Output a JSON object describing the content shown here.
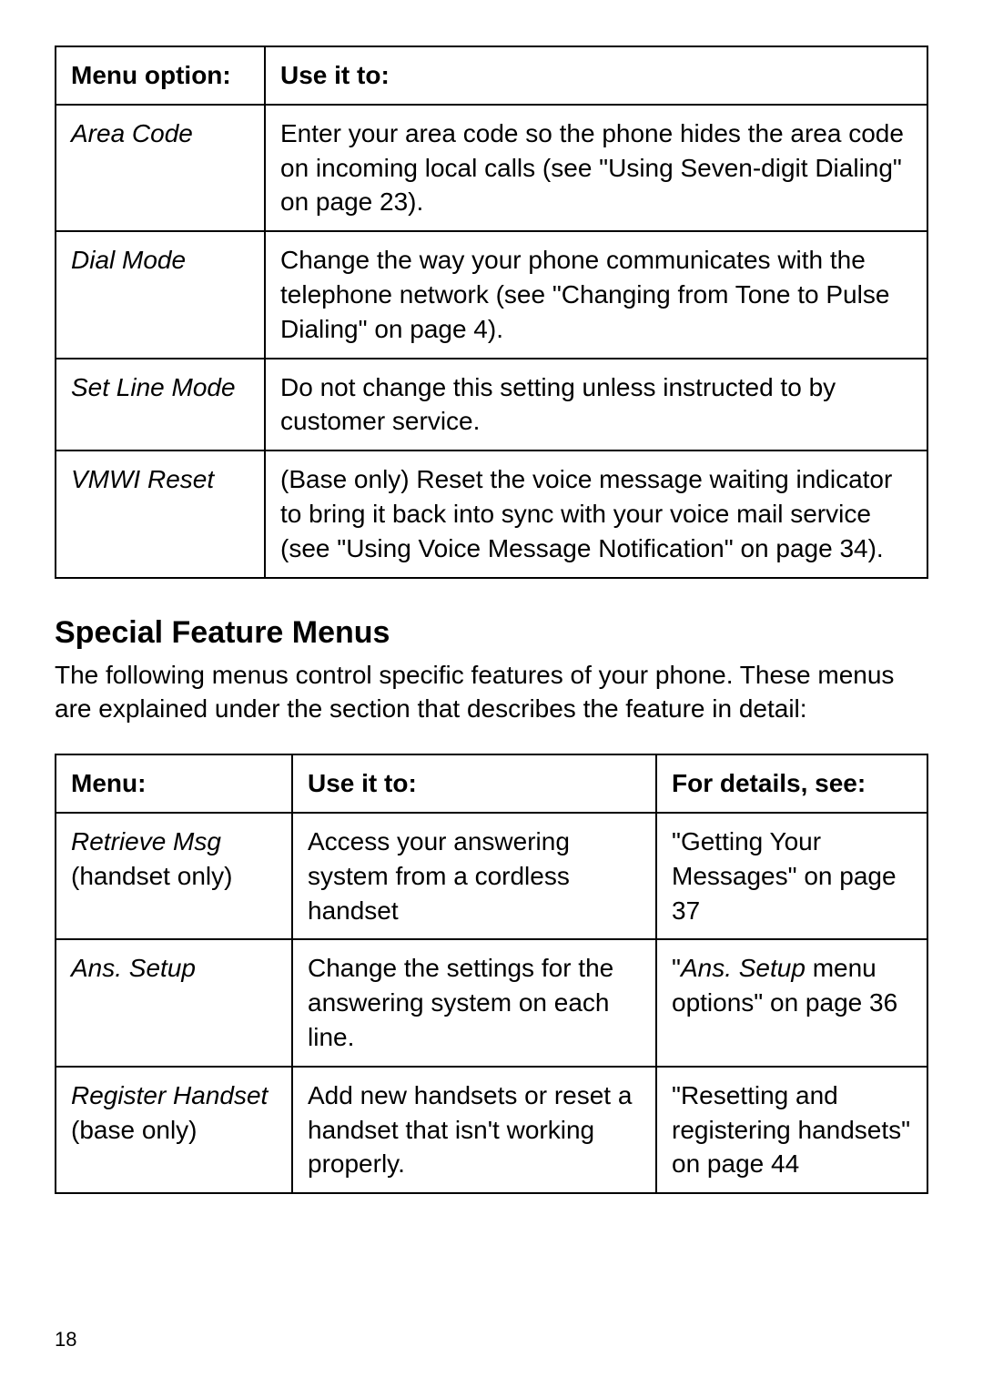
{
  "table1": {
    "headers": [
      "Menu option:",
      "Use it to:"
    ],
    "rows": [
      {
        "option": "Area Code",
        "desc": "Enter your area code so the phone hides the area code on incoming local calls (see \"Using Seven-digit Dialing\" on page 23)."
      },
      {
        "option": "Dial Mode",
        "desc": "Change the way your phone communicates with the telephone network (see \"Changing from Tone to Pulse Dialing\" on page 4)."
      },
      {
        "option": "Set Line Mode",
        "desc": "Do not change this setting unless instructed to by customer service."
      },
      {
        "option": "VMWI Reset",
        "desc": "(Base only) Reset the voice message waiting indicator to bring it back into sync with your voice mail service (see \"Using Voice Message Notification\" on page 34)."
      }
    ]
  },
  "section": {
    "title": "Special Feature Menus",
    "intro": "The following menus control specific features of your phone. These menus are explained under the section that describes the feature in detail:"
  },
  "table2": {
    "headers": [
      "Menu:",
      "Use it to:",
      "For details, see:"
    ],
    "rows": [
      {
        "menu_italic": "Retrieve Msg",
        "menu_plain": " (handset only)",
        "use": "Access your answering system from a cordless handset",
        "details_pre": "\"Getting Your Messages\" on page 37",
        "details_italic": "",
        "details_post": ""
      },
      {
        "menu_italic": "Ans. Setup",
        "menu_plain": "",
        "use": "Change the settings for the answering system on each line.",
        "details_pre": "\"",
        "details_italic": "Ans. Setup",
        "details_post": " menu options\" on page 36"
      },
      {
        "menu_italic": "Register Handset",
        "menu_plain": " (base only)",
        "use": "Add new handsets or reset a handset that isn't working properly.",
        "details_pre": "\"Resetting and registering handsets\" on page 44",
        "details_italic": "",
        "details_post": ""
      }
    ]
  },
  "page_number": "18"
}
